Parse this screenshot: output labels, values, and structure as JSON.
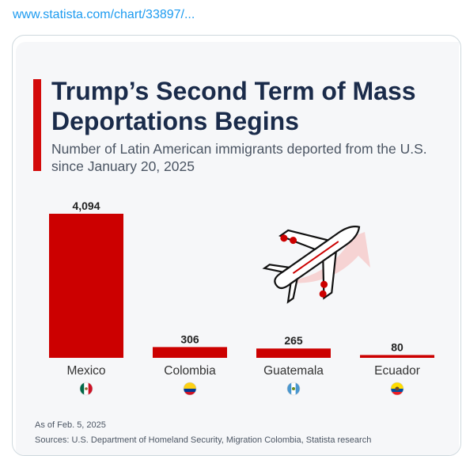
{
  "link_text": "www.statista.com/chart/33897/...",
  "header": {
    "title": "Trump’s Second Term of Mass Deportations Begins",
    "subtitle": "Number of Latin American immigrants deported from the U.S. since January 20, 2025"
  },
  "footer": {
    "note": "As of Feb. 5, 2025",
    "sources": "Sources: U.S. Department of Homeland Security, Migration Colombia, Statista research"
  },
  "colors": {
    "bar": "#cc0000",
    "title": "#1a2b4a",
    "accent": "#d30a0a"
  },
  "chart_data": {
    "type": "bar",
    "categories": [
      "Mexico",
      "Colombia",
      "Guatemala",
      "Ecuador"
    ],
    "values": [
      4094,
      306,
      265,
      80
    ],
    "value_labels": [
      "4,094",
      "306",
      "265",
      "80"
    ],
    "flag_icons": [
      "flag-mexico-icon",
      "flag-colombia-icon",
      "flag-guatemala-icon",
      "flag-ecuador-icon"
    ],
    "ylim": [
      0,
      4094
    ],
    "grid": false,
    "legend": "none"
  }
}
